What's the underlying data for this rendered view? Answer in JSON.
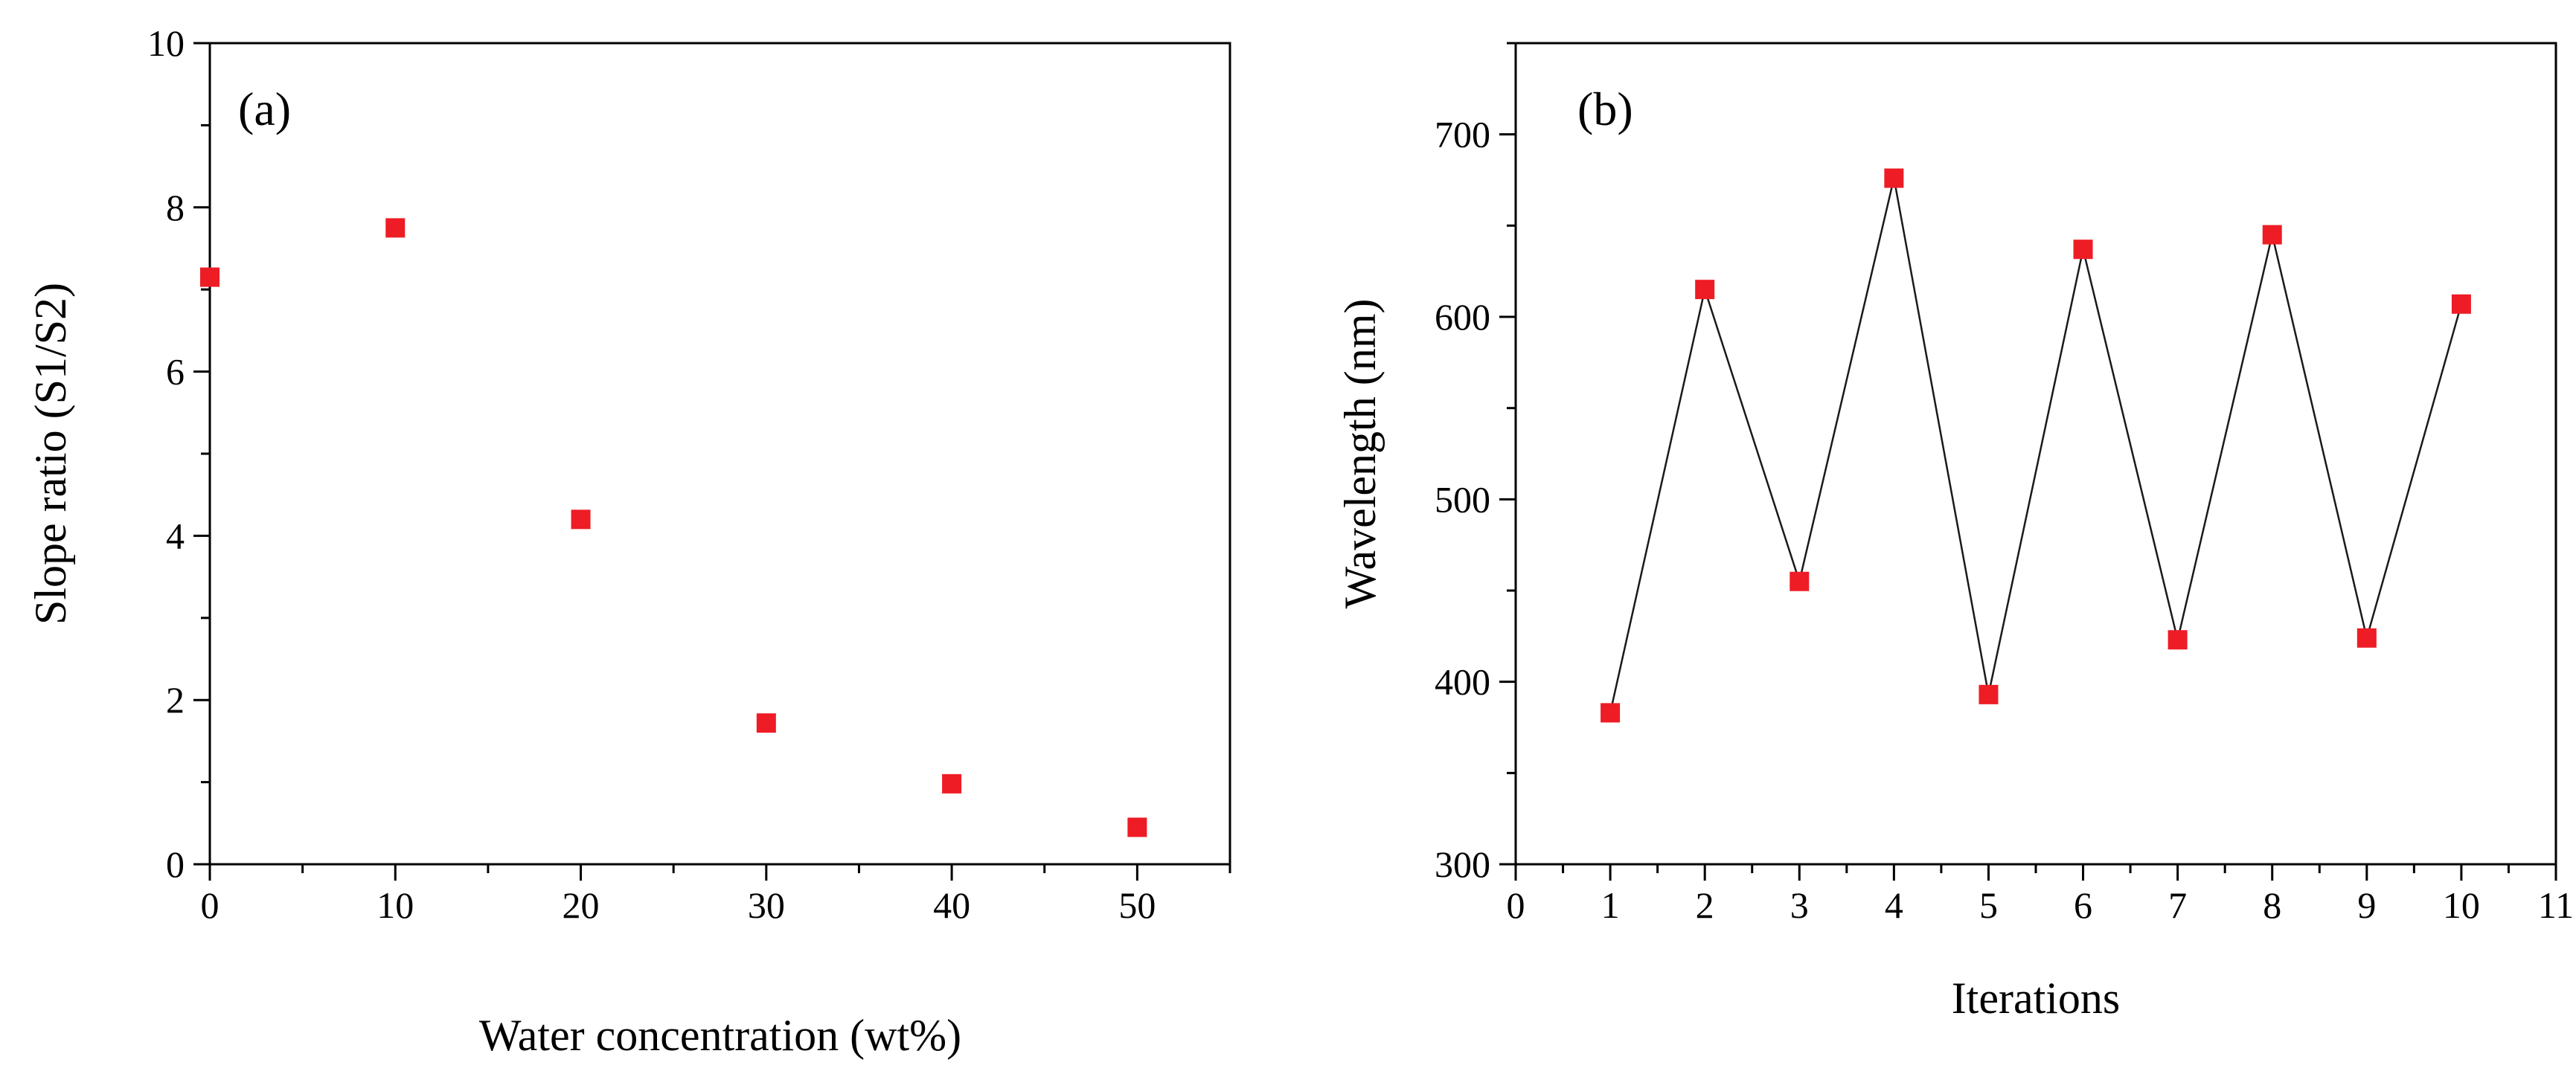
{
  "chart_data": [
    {
      "type": "scatter",
      "panel_label": "(a)",
      "xlabel": "Water concentration (wt%)",
      "ylabel": "Slope ratio (S1/S2)",
      "xlim": [
        0,
        55
      ],
      "ylim": [
        0,
        10
      ],
      "xticks": [
        0,
        10,
        20,
        30,
        40,
        50
      ],
      "yticks": [
        0,
        2,
        4,
        6,
        8,
        10
      ],
      "x_minor_step": 5,
      "y_minor_step": 1,
      "marker": "square",
      "marker_color": "#ee1c25",
      "connect_points": false,
      "series": [
        {
          "name": "Slope ratio",
          "x": [
            0,
            10,
            20,
            30,
            40,
            50
          ],
          "y": [
            7.15,
            7.75,
            4.2,
            1.72,
            0.98,
            0.45
          ]
        }
      ]
    },
    {
      "type": "line",
      "panel_label": "(b)",
      "xlabel": "Iterations",
      "ylabel": "Wavelength (nm)",
      "xlim": [
        0,
        11
      ],
      "ylim": [
        300,
        750
      ],
      "xticks": [
        0,
        1,
        2,
        3,
        4,
        5,
        6,
        7,
        8,
        9,
        10,
        11
      ],
      "yticks": [
        300,
        400,
        500,
        600,
        700
      ],
      "x_minor_step": 0.5,
      "y_minor_step": 50,
      "marker": "square",
      "marker_color": "#ee1c25",
      "line_color": "#1a1a1a",
      "connect_points": true,
      "series": [
        {
          "name": "Wavelength",
          "x": [
            1,
            2,
            3,
            4,
            5,
            6,
            7,
            8,
            9,
            10
          ],
          "y": [
            383,
            615,
            455,
            676,
            393,
            637,
            423,
            645,
            424,
            607
          ]
        }
      ]
    }
  ]
}
